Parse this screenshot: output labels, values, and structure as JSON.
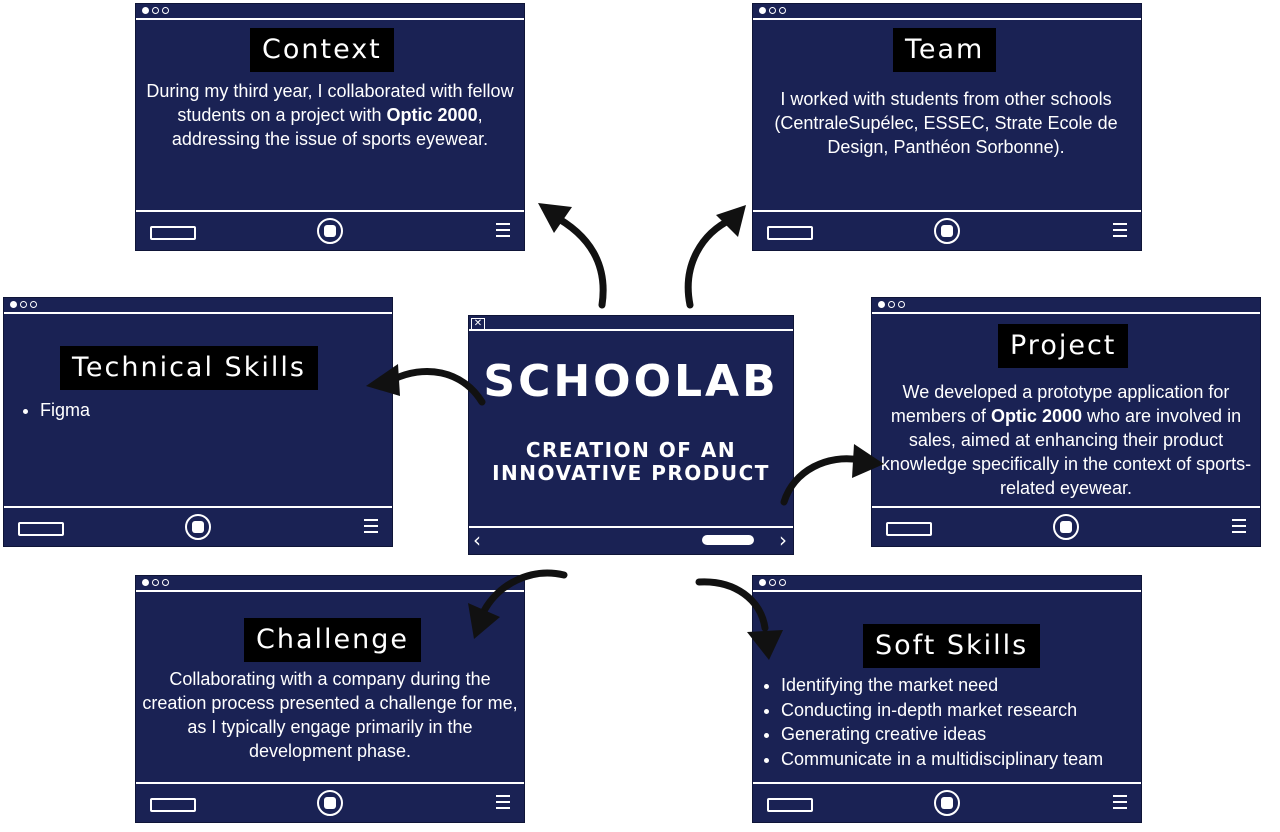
{
  "center": {
    "title": "SCHOOLAB",
    "subtitle_line1": "CREATION OF AN",
    "subtitle_line2": "INNOVATIVE PRODUCT"
  },
  "context": {
    "title": "Context",
    "text_before": "During my third year, I collaborated with fellow students on a project with ",
    "bold": "Optic 2000",
    "text_after": ", addressing the issue of sports eyewear."
  },
  "team": {
    "title": "Team",
    "text": "I worked with students from other schools (CentraleSupélec, ESSEC, Strate Ecole de Design, Panthéon Sorbonne)."
  },
  "technical_skills": {
    "title": "Technical Skills",
    "items": [
      "Figma"
    ]
  },
  "project": {
    "title": "Project",
    "text_before": "We developed a prototype application for members of ",
    "bold": "Optic 2000",
    "text_after": " who are involved in sales, aimed at enhancing their product knowledge specifically in the context of sports-related eyewear."
  },
  "challenge": {
    "title": "Challenge",
    "text": "Collaborating with a company during the creation process presented a challenge for me, as I typically engage primarily in the development phase."
  },
  "soft_skills": {
    "title": "Soft Skills",
    "items": [
      "Identifying the market need",
      "Conducting in-depth market research",
      "Generating creative ideas",
      "Communicate in a multidisciplinary team"
    ]
  },
  "icons": {
    "window_dots": "window-dots-icon",
    "home": "home-button-icon",
    "menu": "hamburger-menu-icon",
    "close": "close-icon",
    "arrow": "curved-arrow-icon"
  },
  "colors": {
    "panel": "#1a2254",
    "title_box": "#000000",
    "text": "#ffffff",
    "arrow": "#111111"
  }
}
